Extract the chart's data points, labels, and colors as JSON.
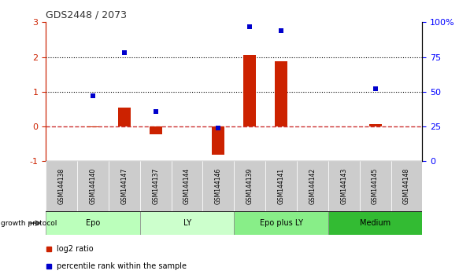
{
  "title": "GDS2448 / 2073",
  "samples": [
    "GSM144138",
    "GSM144140",
    "GSM144147",
    "GSM144137",
    "GSM144144",
    "GSM144146",
    "GSM144139",
    "GSM144141",
    "GSM144142",
    "GSM144143",
    "GSM144145",
    "GSM144148"
  ],
  "log2_ratio": [
    0.0,
    -0.03,
    0.55,
    -0.22,
    0.0,
    -0.82,
    2.05,
    1.88,
    0.0,
    0.0,
    0.06,
    0.0
  ],
  "percentile_rank": [
    null,
    47,
    78,
    36,
    null,
    24,
    97,
    94,
    null,
    null,
    52,
    null
  ],
  "groups": [
    {
      "label": "Epo",
      "start": 0,
      "end": 3,
      "color": "#bbffbb"
    },
    {
      "label": "LY",
      "start": 3,
      "end": 6,
      "color": "#ccffcc"
    },
    {
      "label": "Epo plus LY",
      "start": 6,
      "end": 9,
      "color": "#88ee88"
    },
    {
      "label": "Medium",
      "start": 9,
      "end": 12,
      "color": "#33bb33"
    }
  ],
  "ylim_left": [
    -1.0,
    3.0
  ],
  "ylim_right": [
    0,
    100
  ],
  "left_yticks": [
    -1,
    0,
    1,
    2,
    3
  ],
  "right_yticks": [
    0,
    25,
    50,
    75,
    100
  ],
  "bar_color": "#cc2200",
  "dot_color": "#0000cc",
  "bar_width": 0.4,
  "dot_size": 5,
  "hline0_color": "#cc3333",
  "hline0_style": "--",
  "hline1_color": "#000000",
  "hline1_style": ":",
  "hline2_color": "#000000",
  "hline2_style": ":",
  "sample_box_color": "#cccccc",
  "title_color": "#333333",
  "title_fontsize": 9
}
